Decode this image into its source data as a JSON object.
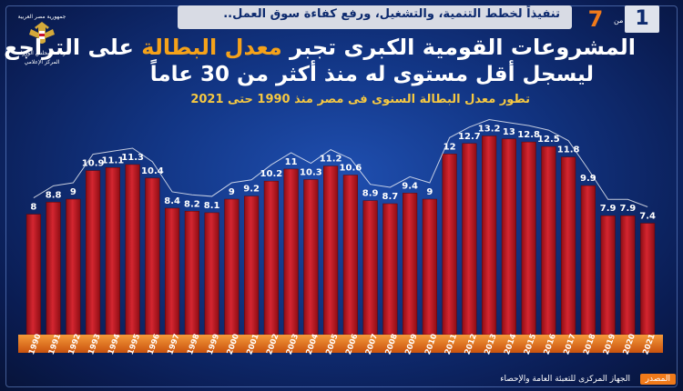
{
  "header": {
    "tagline": "تنفيذاً لخطط التنمية، والتشغيل، ورفع كفاءة سوق العمل..",
    "page_current": "1",
    "page_of": "من",
    "page_total": "7"
  },
  "logo": {
    "line1": "جمهورية مصر العربية",
    "line2": "رئاسة مجلس الوزراء",
    "line3": "المركز الإعلامي"
  },
  "title": {
    "part1": "المشروعات القومية الكبرى تجبر ",
    "highlight": "معدل البطالة",
    "part2": " على التراجع",
    "line2": "ليسجل أقل مستوى له منذ أكثر من 30 عاماً"
  },
  "subtitle": "تطور معدل البطالة السنوى فى مصر منذ 1990 حتى 2021",
  "footer": {
    "source_label": "المصدر",
    "source_text": "الجهاز المركزى للتعبئة العامة والإحصاء"
  },
  "colors": {
    "bar": "#b5141e",
    "bar_highlight": "#e0303a",
    "axis_band": "#e8741c",
    "highlight_text": "#f5a21a"
  },
  "chart_data": {
    "type": "bar",
    "title": "تطور معدل البطالة السنوى فى مصر منذ 1990 حتى 2021",
    "categories": [
      "1990",
      "1991",
      "1992",
      "1993",
      "1994",
      "1995",
      "1996",
      "1997",
      "1998",
      "1999",
      "2000",
      "2001",
      "2002",
      "2003",
      "2004",
      "2005",
      "2006",
      "2007",
      "2008",
      "2009",
      "2010",
      "2011",
      "2012",
      "2013",
      "2014",
      "2015",
      "2016",
      "2017",
      "2018",
      "2019",
      "2020",
      "2021"
    ],
    "values": [
      8.0,
      8.8,
      9.0,
      10.9,
      11.1,
      11.3,
      10.4,
      8.4,
      8.2,
      8.1,
      9.0,
      9.2,
      10.2,
      11.0,
      10.3,
      11.2,
      10.6,
      8.9,
      8.7,
      9.4,
      9.0,
      12.0,
      12.7,
      13.2,
      13.0,
      12.8,
      12.5,
      11.8,
      9.9,
      7.9,
      7.9,
      7.4
    ],
    "labels": [
      "8",
      "8.8",
      "9",
      "10.9",
      "11.1",
      "11.3",
      "10.4",
      "8.4",
      "8.2",
      "8.1",
      "9",
      "9.2",
      "10.2",
      "11",
      "10.3",
      "11.2",
      "10.6",
      "8.9",
      "8.7",
      "9.4",
      "9",
      "12",
      "12.7",
      "13.2",
      "13",
      "12.8",
      "12.5",
      "11.8",
      "9.9",
      "7.9",
      "7.9",
      "7.4"
    ],
    "ylim": [
      0,
      14.5
    ],
    "grid": false,
    "trend_line": true
  }
}
